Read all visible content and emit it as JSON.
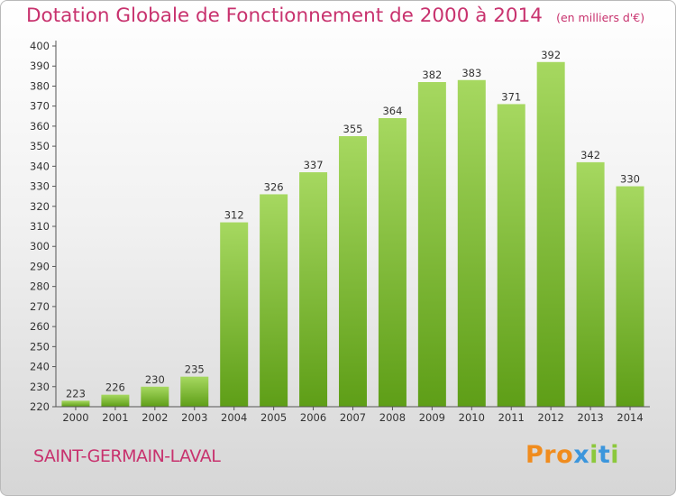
{
  "header": {
    "title": "Dotation Globale de Fonctionnement de 2000 à 2014",
    "unit": "(en milliers d'€)"
  },
  "footer": {
    "town": "SAINT-GERMAIN-LAVAL",
    "logo_text": "Proxiti"
  },
  "colors": {
    "accent_text": "#c8326e",
    "bar_top": "#a6d860",
    "bar_bottom": "#5e9e17",
    "logo_letters": [
      "#f08c1e",
      "#f08c1e",
      "#f08c1e",
      "#3c96dc",
      "#8cc83c",
      "#3c96dc",
      "#8cc83c"
    ]
  },
  "chart_data": {
    "type": "bar",
    "title": "Dotation Globale de Fonctionnement de 2000 à 2014",
    "subtitle": "(en milliers d'€)",
    "categories": [
      "2000",
      "2001",
      "2002",
      "2003",
      "2004",
      "2005",
      "2006",
      "2007",
      "2008",
      "2009",
      "2010",
      "2011",
      "2012",
      "2013",
      "2014"
    ],
    "values": [
      223,
      226,
      230,
      235,
      312,
      326,
      337,
      355,
      364,
      382,
      383,
      371,
      392,
      342,
      330
    ],
    "ylim": [
      220,
      400
    ],
    "ytick_step": 10,
    "grid": false,
    "legend": "none"
  }
}
